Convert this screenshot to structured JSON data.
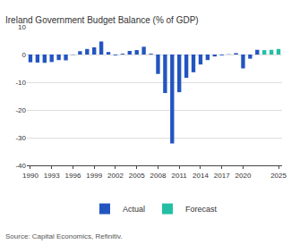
{
  "chart_data": {
    "type": "bar",
    "title": "Ireland Government Budget Balance (% of GDP)",
    "annotations": [
      "Source: Capital Economics, Refinitiv."
    ],
    "x": [
      1990,
      1991,
      1992,
      1993,
      1994,
      1995,
      1996,
      1997,
      1998,
      1999,
      2000,
      2001,
      2002,
      2003,
      2004,
      2005,
      2006,
      2007,
      2008,
      2009,
      2010,
      2011,
      2012,
      2013,
      2014,
      2015,
      2016,
      2017,
      2018,
      2019,
      2020,
      2021,
      2022,
      2023,
      2024,
      2025
    ],
    "series": [
      {
        "name": "Actual",
        "color": "#2355c0",
        "values": [
          -2.8,
          -2.9,
          -3.0,
          -2.7,
          -2.0,
          -2.1,
          -0.1,
          1.2,
          2.0,
          2.6,
          4.7,
          0.9,
          -0.3,
          0.3,
          1.3,
          1.6,
          2.8,
          0.3,
          -7.0,
          -13.9,
          -32.1,
          -13.6,
          -8.4,
          -6.4,
          -3.6,
          -2.0,
          -0.7,
          -0.3,
          0.1,
          0.5,
          -5.0,
          -1.5,
          1.7,
          null,
          null,
          null
        ]
      },
      {
        "name": "Forecast",
        "color": "#22bfa5",
        "values": [
          null,
          null,
          null,
          null,
          null,
          null,
          null,
          null,
          null,
          null,
          null,
          null,
          null,
          null,
          null,
          null,
          null,
          null,
          null,
          null,
          null,
          null,
          null,
          null,
          null,
          null,
          null,
          null,
          null,
          null,
          null,
          null,
          null,
          1.6,
          1.7,
          2.0
        ]
      }
    ],
    "xlim": [
      1989.5,
      2025.5
    ],
    "xticks": [
      1990,
      1993,
      1996,
      1999,
      2002,
      2005,
      2008,
      2011,
      2014,
      2017,
      2020,
      2025
    ],
    "ylim": [
      -40,
      10
    ],
    "yticks": [
      -40,
      -30,
      -20,
      -10,
      0,
      10
    ],
    "grid": true,
    "legend": "bottom"
  }
}
